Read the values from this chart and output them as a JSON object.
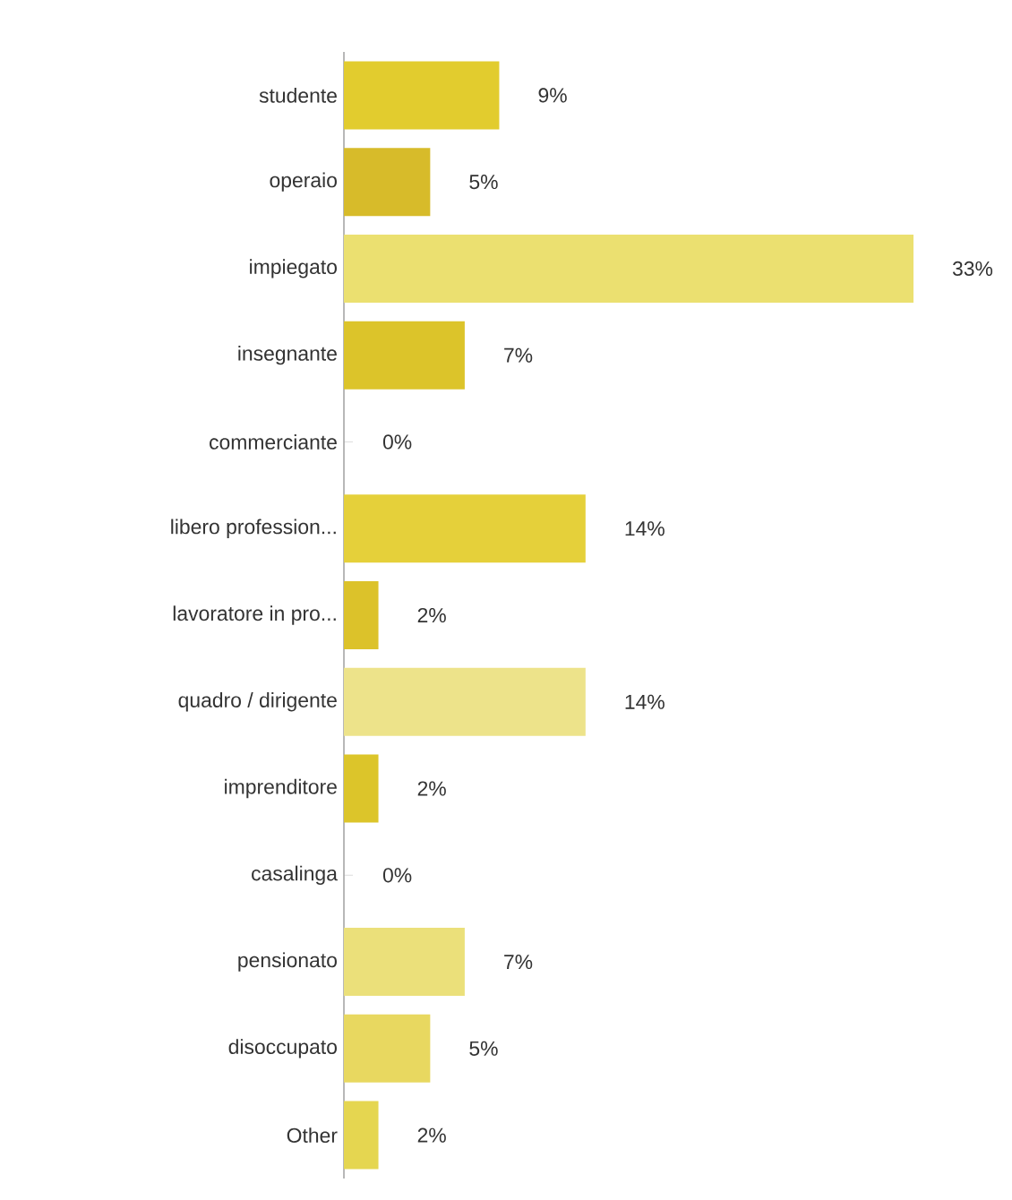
{
  "chart_data": {
    "type": "bar",
    "orientation": "horizontal",
    "categories": [
      "studente",
      "operaio",
      "impiegato",
      "insegnante",
      "commerciante",
      "libero profession...",
      "lavoratore in pro...",
      "quadro / dirigente",
      "imprenditore",
      "casalinga",
      "pensionato",
      "disoccupato",
      "Other"
    ],
    "values": [
      9,
      5,
      33,
      7,
      0,
      14,
      2,
      14,
      2,
      0,
      7,
      5,
      2
    ],
    "value_labels": [
      "9%",
      "5%",
      "33%",
      "7%",
      "0%",
      "14%",
      "2%",
      "14%",
      "2%",
      "0%",
      "7%",
      "5%",
      "2%"
    ],
    "colors": [
      "#e2cc2e",
      "#d7bb2a",
      "#ebe070",
      "#dcc42a",
      "#e2cc2e",
      "#e5d03a",
      "#dcc22a",
      "#ede38a",
      "#dcc52a",
      "#e2cc2e",
      "#ebe07a",
      "#e8d860",
      "#e5d650"
    ],
    "data_labels": false
  }
}
